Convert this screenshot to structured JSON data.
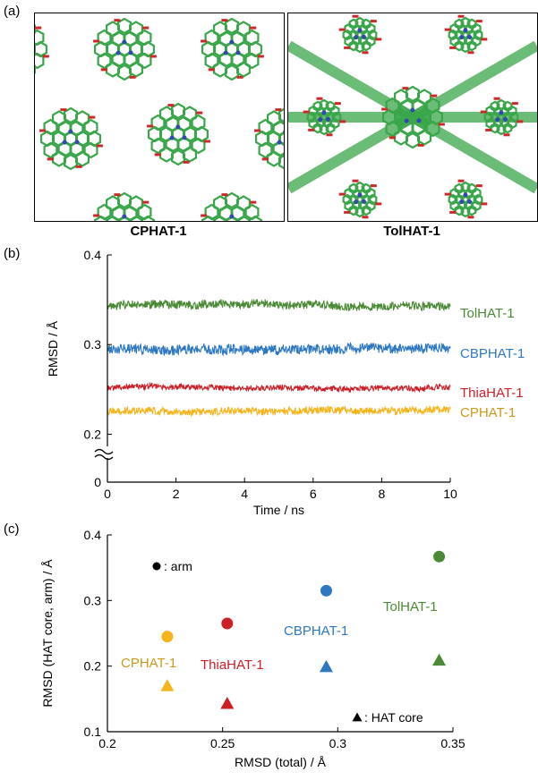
{
  "panel_labels": {
    "a": "(a)",
    "b": "(b)",
    "c": "(c)"
  },
  "panel_a": {
    "left_title": "CPHAT-1",
    "right_title": "TolHAT-1"
  },
  "chart_data": [
    {
      "type": "line",
      "xlabel": "Time / ns",
      "ylabel": "RMSD / Å",
      "xlim": [
        0,
        10
      ],
      "xticks": [
        "0",
        "2",
        "4",
        "6",
        "8",
        "10"
      ],
      "yticks": [
        "0",
        "0.2",
        "0.3",
        "0.4"
      ],
      "axis_break": "0 – 0.2",
      "series": [
        {
          "name": "TolHAT-1",
          "color": "#4a8a34",
          "mean": 0.344,
          "noise": 0.006
        },
        {
          "name": "CBPHAT-1",
          "color": "#2e78c2",
          "mean": 0.295,
          "noise": 0.007
        },
        {
          "name": "ThiaHAT-1",
          "color": "#cc1f27",
          "mean": 0.252,
          "noise": 0.004
        },
        {
          "name": "CPHAT-1",
          "color": "#f4b41a",
          "mean": 0.226,
          "noise": 0.005
        }
      ]
    },
    {
      "type": "scatter",
      "xlabel": "RMSD (total) / Å",
      "ylabel": "RMSD (HAT core, arm) / Å",
      "xlim": [
        0.2,
        0.35
      ],
      "ylim": [
        0.1,
        0.4
      ],
      "xticks": [
        "0.2",
        "0.25",
        "0.3",
        "0.35"
      ],
      "yticks": [
        "0.1",
        "0.2",
        "0.3",
        "0.4"
      ],
      "legend": {
        "arm": ": arm",
        "core": ": HAT core"
      },
      "series": [
        {
          "name": "CPHAT-1",
          "color": "#f4b41a",
          "label_color": "#c99a1c",
          "total": 0.226,
          "arm": 0.245,
          "core": 0.17
        },
        {
          "name": "ThiaHAT-1",
          "color": "#cc1f27",
          "label_color": "#cc1f27",
          "total": 0.252,
          "arm": 0.265,
          "core": 0.143
        },
        {
          "name": "CBPHAT-1",
          "color": "#2e78c2",
          "label_color": "#2e78c2",
          "total": 0.295,
          "arm": 0.315,
          "core": 0.199
        },
        {
          "name": "TolHAT-1",
          "color": "#4a8a34",
          "label_color": "#4a8a34",
          "total": 0.344,
          "arm": 0.367,
          "core": 0.209
        }
      ]
    }
  ]
}
